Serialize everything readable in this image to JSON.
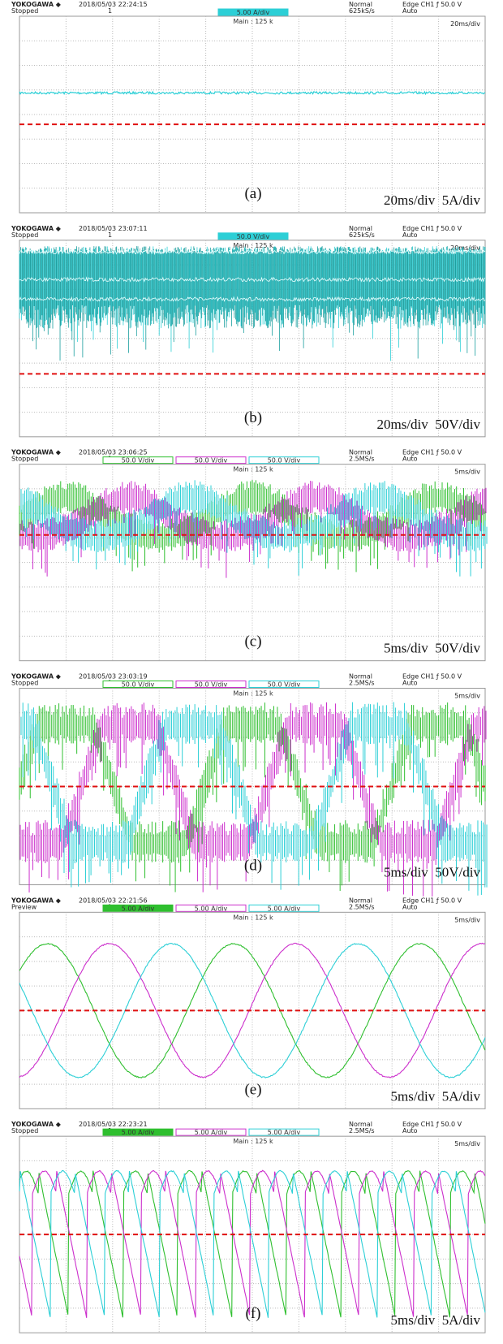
{
  "panels": [
    {
      "brand": "YOKOGAWA ◆",
      "status": "Stopped",
      "datetime": "2018/05/03 22:24:15",
      "record": "1",
      "mode": "Normal",
      "rate": "625kS/s",
      "trigger": "Edge CH1 ƒ 50.0 V",
      "trigger_mode": "Auto",
      "channels": [
        "5.00 A/div"
      ],
      "main": "Main : 125 k",
      "timebase": "20ms/div",
      "label": "(a)",
      "scale": "20ms/div  5A/div"
    },
    {
      "brand": "YOKOGAWA ◆",
      "status": "Stopped",
      "datetime": "2018/05/03 23:07:11",
      "record": "1",
      "mode": "Normal",
      "rate": "625kS/s",
      "trigger": "Edge CH1 ƒ 50.0 V",
      "trigger_mode": "Auto",
      "channels": [
        "50.0 V/div"
      ],
      "main": "Main : 125 k",
      "timebase": "20ms/div",
      "label": "(b)",
      "scale": "20ms/div  50V/div"
    },
    {
      "brand": "YOKOGAWA ◆",
      "status": "Stopped",
      "datetime": "2018/05/03 23:06:25",
      "record": "1",
      "mode": "Normal",
      "rate": "2.5MS/s",
      "trigger": "Edge CH1 ƒ 50.0 V",
      "trigger_mode": "Auto",
      "channels": [
        "50.0 V/div",
        "50.0 V/div",
        "50.0 V/div"
      ],
      "main": "Main : 125 k",
      "timebase": "5ms/div",
      "label": "(c)",
      "scale": "5ms/div  50V/div"
    },
    {
      "brand": "YOKOGAWA ◆",
      "status": "Stopped",
      "datetime": "2018/05/03 23:03:19",
      "record": "1",
      "mode": "Normal",
      "rate": "2.5MS/s",
      "trigger": "Edge CH1 ƒ 50.0 V",
      "trigger_mode": "Auto",
      "channels": [
        "50.0 V/div",
        "50.0 V/div",
        "50.0 V/div"
      ],
      "main": "Main : 125 k",
      "timebase": "5ms/div",
      "label": "(d)",
      "scale": "5ms/div  50V/div"
    },
    {
      "brand": "YOKOGAWA ◆",
      "status": "Preview",
      "datetime": "2018/05/03 22:21:56",
      "record": "1",
      "mode": "Normal",
      "rate": "2.5MS/s",
      "trigger": "Edge CH1 ƒ 50.0 V",
      "trigger_mode": "Auto",
      "channels": [
        "5.00 A/div",
        "5.00 A/div",
        "5.00 A/div"
      ],
      "main": "Main : 125 k",
      "timebase": "5ms/div",
      "label": "(e)",
      "scale": "5ms/div  5A/div"
    },
    {
      "brand": "YOKOGAWA ◆",
      "status": "Stopped",
      "datetime": "2018/05/03 22:23:21",
      "record": "1",
      "mode": "Normal",
      "rate": "2.5MS/s",
      "trigger": "Edge CH1 ƒ 50.0 V",
      "trigger_mode": "Auto",
      "channels": [
        "5.00 A/div",
        "5.00 A/div",
        "5.00 A/div"
      ],
      "main": "Main : 125 k",
      "timebase": "5ms/div",
      "label": "(f)",
      "scale": "5ms/div  5A/div"
    }
  ]
}
